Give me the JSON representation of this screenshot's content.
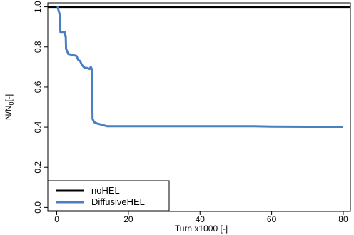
{
  "chart_data": {
    "type": "line",
    "xlabel": "Turn x1000 [-]",
    "ylabel_main": "N/N",
    "ylabel_sub": "0",
    "ylabel_suffix": "[-]",
    "xlim": [
      -2.5,
      82
    ],
    "ylim": [
      -0.02,
      1.02
    ],
    "xticks": [
      0,
      20,
      40,
      60,
      80
    ],
    "yticks": [
      0.0,
      0.2,
      0.4,
      0.6,
      0.8,
      1.0
    ],
    "xtick_labels": [
      "0",
      "20",
      "40",
      "60",
      "80"
    ],
    "ytick_labels": [
      "0.0",
      "0.2",
      "0.4",
      "0.6",
      "0.8",
      "1.0"
    ],
    "legend_position": "bottom-left",
    "series": [
      {
        "name": "noHEL",
        "color": "#000000",
        "x": [
          -2.5,
          82
        ],
        "y": [
          1.0,
          1.0
        ]
      },
      {
        "name": "DiffusiveHEL",
        "color": "#4a7fc1",
        "x": [
          0.0,
          0.3,
          0.5,
          0.9,
          1.0,
          2.2,
          2.3,
          2.5,
          2.6,
          3.0,
          3.2,
          4.5,
          5.5,
          6.0,
          6.5,
          7.0,
          7.5,
          8.0,
          8.5,
          9.2,
          9.5,
          9.8,
          10.0,
          10.5,
          11.0,
          12.0,
          13.0,
          14.0,
          18.0,
          30.0,
          55.0,
          60.0,
          70.0,
          80.0
        ],
        "y": [
          1.0,
          1.0,
          0.98,
          0.96,
          0.875,
          0.875,
          0.855,
          0.855,
          0.79,
          0.775,
          0.765,
          0.76,
          0.755,
          0.735,
          0.73,
          0.71,
          0.7,
          0.695,
          0.695,
          0.69,
          0.7,
          0.69,
          0.44,
          0.425,
          0.42,
          0.415,
          0.41,
          0.405,
          0.405,
          0.405,
          0.405,
          0.403,
          0.402,
          0.402
        ]
      }
    ]
  }
}
